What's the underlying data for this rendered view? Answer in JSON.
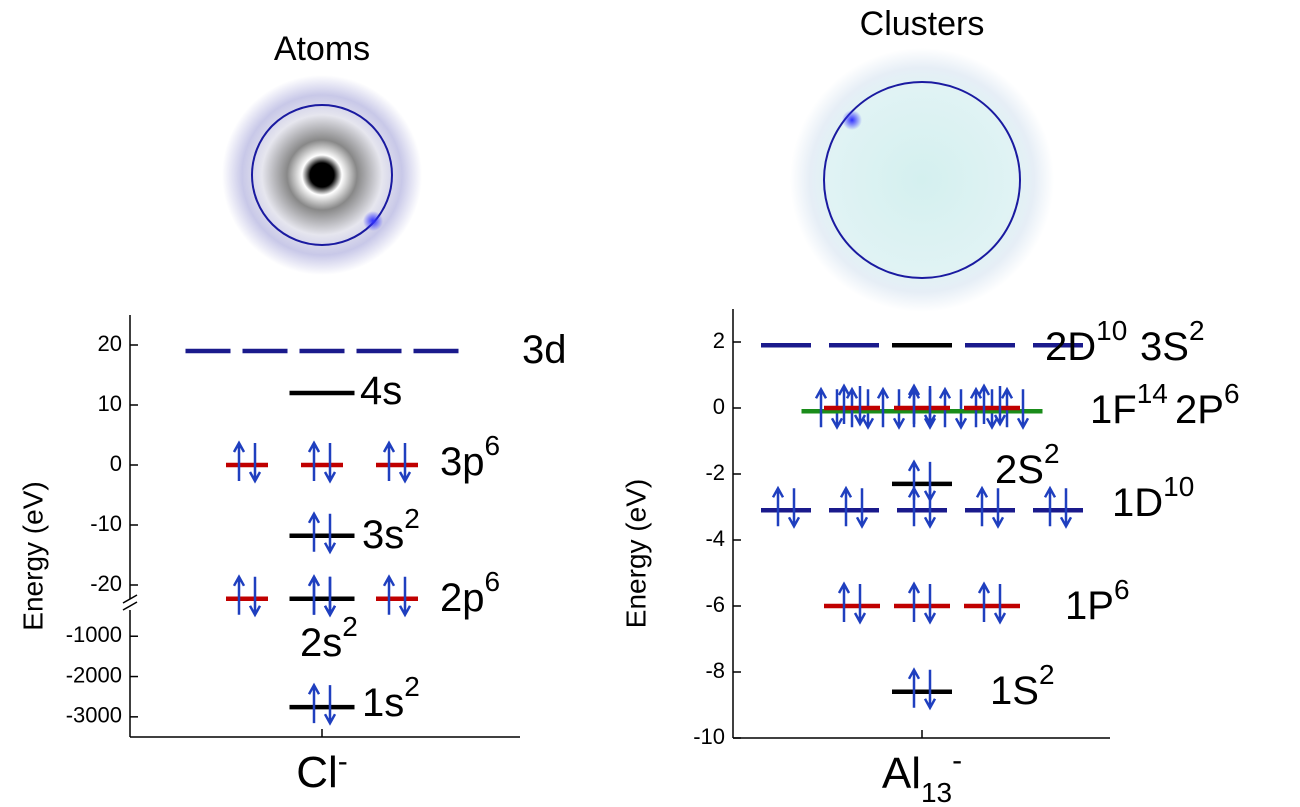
{
  "chart_data": [
    {
      "type": "energy-levels",
      "title": "Atoms",
      "ylabel": "Energy (eV)",
      "xlabel": {
        "text": "Cl",
        "sup": "-"
      },
      "ylim": [
        -23,
        25
      ],
      "yticks": [
        20,
        10,
        0,
        -10,
        -20
      ],
      "ylim_break": [
        -3500,
        -250
      ],
      "yticks_break": [
        -1000,
        -2000,
        -3000
      ],
      "levels": [
        {
          "label": "3d",
          "energy": 19,
          "lines": 5,
          "color": "#1a1a8c",
          "filled": false
        },
        {
          "label": "4s",
          "energy": 12,
          "lines": 1,
          "color": "#000000",
          "filled": false
        },
        {
          "label": "3p",
          "sup": "6",
          "energy": 0,
          "lines": 3,
          "color": "#c00000",
          "filled": true
        },
        {
          "label": "3s",
          "sup": "2",
          "energy": -11.8,
          "lines": 1,
          "color": "#000000",
          "filled": true
        },
        {
          "label": "2p",
          "sup": "6",
          "energy": -22.3,
          "lines": 3,
          "color": "#c00000",
          "filled": true
        },
        {
          "label": "2s",
          "sup": "2",
          "energy": -22.3,
          "lines": 1,
          "color": "#000000",
          "filled": true
        },
        {
          "label": "1s",
          "sup": "2",
          "energy": -2760,
          "lines": 1,
          "color": "#000000",
          "filled": true
        }
      ]
    },
    {
      "type": "energy-levels",
      "title": "Clusters",
      "ylabel": "Energy (eV)",
      "xlabel": {
        "text": "Al",
        "sub": "13",
        "sup": "-"
      },
      "ylim": [
        -10,
        3
      ],
      "yticks": [
        2,
        0,
        -2,
        -4,
        -6,
        -8,
        -10
      ],
      "levels": [
        {
          "label": "2D",
          "sup": "10",
          "energy": 1.9,
          "lines": 5,
          "color": "#1a1a8c",
          "filled": false
        },
        {
          "label": "3S",
          "sup": "2",
          "energy": 1.9,
          "lines": 1,
          "color": "#000000",
          "filled": false
        },
        {
          "label": "1F",
          "sup": "14",
          "energy": -0.1,
          "lines": 7,
          "color": "#1a8c1a",
          "filled": true
        },
        {
          "label": "2P",
          "sup": "6",
          "energy": 0,
          "lines": 3,
          "color": "#c00000",
          "filled": true
        },
        {
          "label": "2S",
          "sup": "2",
          "energy": -2.3,
          "lines": 1,
          "color": "#000000",
          "filled": true
        },
        {
          "label": "1D",
          "sup": "10",
          "energy": -3.1,
          "lines": 5,
          "color": "#1a1a8c",
          "filled": true
        },
        {
          "label": "1P",
          "sup": "6",
          "energy": -6,
          "lines": 3,
          "color": "#c00000",
          "filled": true
        },
        {
          "label": "1S",
          "sup": "2",
          "energy": -8.6,
          "lines": 1,
          "color": "#000000",
          "filled": true
        }
      ]
    }
  ]
}
